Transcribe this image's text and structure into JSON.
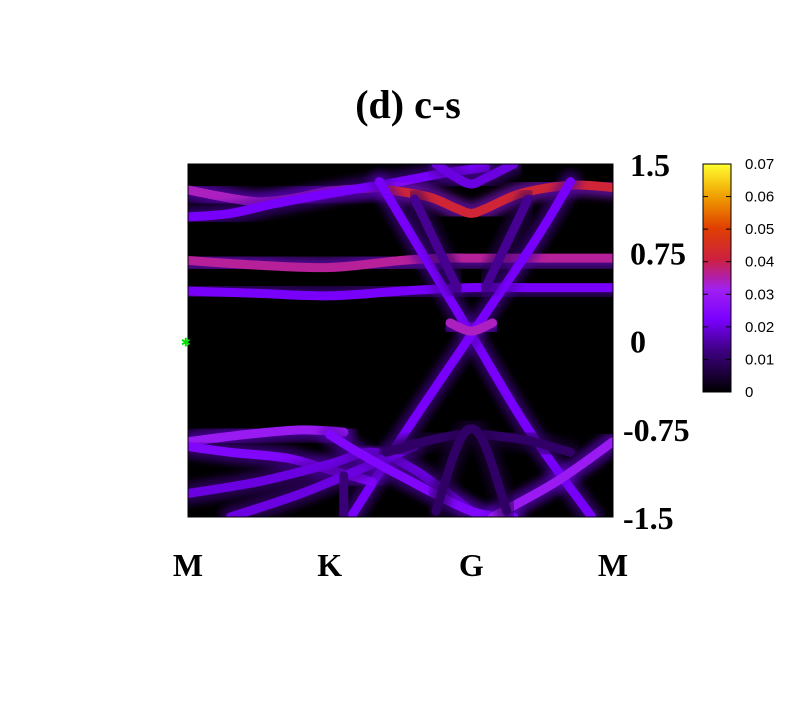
{
  "chart_data": {
    "type": "heatmap",
    "title": "(d) c-s",
    "x_ticks": [
      "M",
      "K",
      "G",
      "M"
    ],
    "x_tick_positions": [
      0,
      1,
      2,
      3
    ],
    "xlim": [
      0,
      3
    ],
    "y_ticks": [
      "1.5",
      "0.75",
      "0",
      "-0.75",
      "-1.5"
    ],
    "y_tick_values": [
      1.5,
      0.75,
      0,
      -0.75,
      -1.5
    ],
    "ylim": [
      -1.5,
      1.5
    ],
    "y_axis_side": "right",
    "colorbar": {
      "ticks": [
        "0.07",
        "0.06",
        "0.05",
        "0.04",
        "0.03",
        "0.02",
        "0.01",
        "0"
      ],
      "tick_values": [
        0.07,
        0.06,
        0.05,
        0.04,
        0.03,
        0.02,
        0.01,
        0
      ],
      "range": [
        0,
        0.07
      ],
      "placement": "right"
    },
    "bands": [
      {
        "points": [
          [
            0,
            1.28
          ],
          [
            0.25,
            1.22
          ],
          [
            0.5,
            1.18
          ],
          [
            0.75,
            1.21
          ],
          [
            1.0,
            1.27
          ],
          [
            1.35,
            1.3
          ]
        ],
        "weight": 0.034
      },
      {
        "points": [
          [
            0,
            1.05
          ],
          [
            0.3,
            1.08
          ],
          [
            0.6,
            1.16
          ],
          [
            1.0,
            1.25
          ],
          [
            1.4,
            1.33
          ],
          [
            1.8,
            1.42
          ],
          [
            2.1,
            1.47
          ]
        ],
        "weight": 0.022
      },
      {
        "points": [
          [
            1.42,
            1.28
          ],
          [
            1.7,
            1.22
          ],
          [
            1.9,
            1.12
          ],
          [
            2.0,
            1.08
          ],
          [
            2.1,
            1.12
          ],
          [
            2.35,
            1.25
          ],
          [
            2.7,
            1.32
          ],
          [
            3.0,
            1.3
          ]
        ],
        "weight": 0.042
      },
      {
        "points": [
          [
            1.75,
            1.5
          ],
          [
            1.9,
            1.38
          ],
          [
            2.0,
            1.33
          ],
          [
            2.1,
            1.38
          ],
          [
            2.3,
            1.5
          ]
        ],
        "weight": 0.02
      },
      {
        "points": [
          [
            0,
            0.68
          ],
          [
            0.5,
            0.64
          ],
          [
            1.0,
            0.62
          ],
          [
            1.5,
            0.68
          ],
          [
            1.8,
            0.7
          ],
          [
            2.0,
            0.7
          ],
          [
            2.3,
            0.7
          ],
          [
            3.0,
            0.7
          ]
        ],
        "weight": 0.036
      },
      {
        "points": [
          [
            0,
            0.42
          ],
          [
            0.5,
            0.4
          ],
          [
            1.0,
            0.38
          ],
          [
            1.5,
            0.42
          ],
          [
            2.0,
            0.45
          ],
          [
            2.5,
            0.45
          ],
          [
            3.0,
            0.45
          ]
        ],
        "weight": 0.022
      },
      {
        "points": [
          [
            1.35,
            1.35
          ],
          [
            1.6,
            0.85
          ],
          [
            2.0,
            0.05
          ],
          [
            2.4,
            -0.75
          ],
          [
            2.85,
            -1.5
          ]
        ],
        "weight": 0.022
      },
      {
        "points": [
          [
            1.15,
            -1.5
          ],
          [
            1.55,
            -0.75
          ],
          [
            2.0,
            0.05
          ],
          [
            2.45,
            0.85
          ],
          [
            2.7,
            1.35
          ]
        ],
        "weight": 0.022
      },
      {
        "points": [
          [
            1.6,
            1.2
          ],
          [
            1.8,
            0.7
          ],
          [
            1.9,
            0.45
          ]
        ],
        "weight": 0.014
      },
      {
        "points": [
          [
            2.4,
            1.2
          ],
          [
            2.2,
            0.7
          ],
          [
            2.1,
            0.45
          ]
        ],
        "weight": 0.014
      },
      {
        "points": [
          [
            1.85,
            0.15
          ],
          [
            2.0,
            0.08
          ],
          [
            2.15,
            0.15
          ]
        ],
        "weight": 0.034
      },
      {
        "points": [
          [
            0,
            -0.86
          ],
          [
            0.4,
            -0.8
          ],
          [
            0.8,
            -0.76
          ],
          [
            1.1,
            -0.78
          ]
        ],
        "weight": 0.03
      },
      {
        "points": [
          [
            0,
            -0.9
          ],
          [
            0.3,
            -0.95
          ],
          [
            0.7,
            -1.0
          ],
          [
            1.0,
            -1.1
          ],
          [
            1.3,
            -1.2
          ]
        ],
        "weight": 0.024
      },
      {
        "points": [
          [
            0,
            -1.3
          ],
          [
            0.5,
            -1.2
          ],
          [
            1.0,
            -1.05
          ],
          [
            1.3,
            -0.95
          ],
          [
            1.6,
            -1.1
          ],
          [
            2.0,
            -1.45
          ]
        ],
        "weight": 0.02
      },
      {
        "points": [
          [
            0.3,
            -1.5
          ],
          [
            0.8,
            -1.3
          ],
          [
            1.3,
            -1.05
          ],
          [
            1.6,
            -0.9
          ]
        ],
        "weight": 0.02
      },
      {
        "points": [
          [
            1.0,
            -0.8
          ],
          [
            1.2,
            -0.95
          ],
          [
            1.5,
            -1.15
          ],
          [
            2.0,
            -1.45
          ],
          [
            2.3,
            -1.5
          ]
        ],
        "weight": 0.024
      },
      {
        "points": [
          [
            2.15,
            -1.5
          ],
          [
            2.6,
            -1.2
          ],
          [
            3.0,
            -0.86
          ]
        ],
        "weight": 0.03
      },
      {
        "points": [
          [
            1.4,
            -0.95
          ],
          [
            1.7,
            -0.85
          ],
          [
            1.9,
            -0.8
          ]
        ],
        "weight": 0.01
      },
      {
        "points": [
          [
            2.1,
            -0.8
          ],
          [
            2.4,
            -0.85
          ],
          [
            2.7,
            -0.95
          ]
        ],
        "weight": 0.01
      },
      {
        "points": [
          [
            1.75,
            -1.45
          ],
          [
            1.9,
            -0.9
          ],
          [
            2.0,
            -0.75
          ],
          [
            2.1,
            -0.9
          ],
          [
            2.25,
            -1.45
          ]
        ],
        "weight": 0.01
      },
      {
        "points": [
          [
            1.1,
            -1.15
          ],
          [
            1.1,
            -1.5
          ]
        ],
        "weight": 0.012
      }
    ],
    "marker": {
      "x": -0.03,
      "y": 0,
      "color": "#00e000"
    },
    "grid": false
  }
}
